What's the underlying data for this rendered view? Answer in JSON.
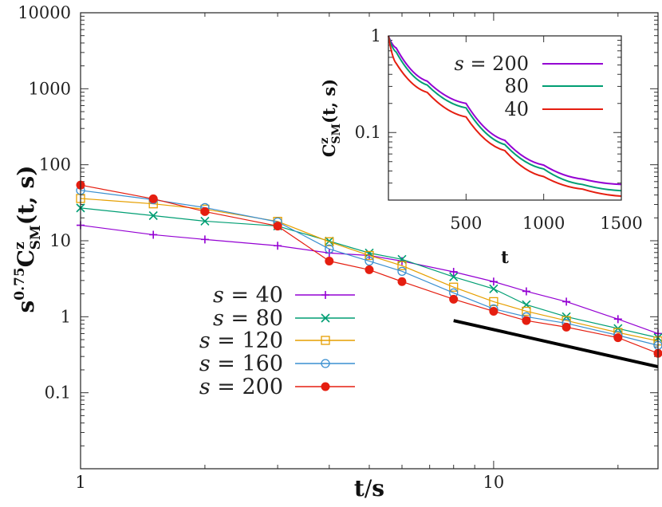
{
  "chart_data": [
    {
      "type": "line",
      "scale": "log-log",
      "xlabel_parts": {
        "t": "t",
        "slash": "/",
        "s": "s"
      },
      "ylabel_parts": {
        "s": "s",
        "s_exp": "0.75",
        "C": "C",
        "C_sup": "z",
        "C_sub": "SM",
        "args": "(t, s)"
      },
      "xlim": [
        1,
        25
      ],
      "ylim": [
        0.01,
        10000
      ],
      "xticks": [
        "1",
        "10"
      ],
      "xtick_values": [
        1,
        10
      ],
      "yticks": [
        "0.1",
        "1",
        "10",
        "100",
        "1000",
        "10000"
      ],
      "ytick_values": [
        0.1,
        1,
        10,
        100,
        1000,
        10000
      ],
      "grid": false,
      "legend_position": "bottom-left",
      "series": [
        {
          "name": "s = 40",
          "s_label": "s",
          "eq": "= 40",
          "color": "#9400d3",
          "marker": "plus",
          "x": [
            1,
            1.5,
            2,
            3,
            4,
            5,
            6,
            8,
            10,
            12,
            15,
            20,
            25
          ],
          "y": [
            16,
            12,
            10.4,
            8.6,
            6.9,
            6.4,
            5.4,
            3.9,
            2.9,
            2.16,
            1.58,
            0.93,
            0.6
          ]
        },
        {
          "name": "s = 80",
          "s_label": "s",
          "eq": "= 80",
          "color": "#009e73",
          "marker": "cross",
          "x": [
            1,
            1.5,
            2,
            3,
            4,
            5,
            6,
            8,
            10,
            12,
            15,
            20,
            25
          ],
          "y": [
            27,
            21.4,
            18.1,
            15.6,
            9.9,
            6.9,
            5.7,
            3.35,
            2.33,
            1.44,
            1.0,
            0.7,
            0.53
          ]
        },
        {
          "name": "s = 120",
          "s_label": "s",
          "eq": "= 120",
          "color": "#e69f00",
          "marker": "open-square",
          "x": [
            1,
            1.5,
            2,
            3,
            4,
            5,
            6,
            8,
            10,
            12,
            15,
            20,
            25
          ],
          "y": [
            36,
            30.6,
            26,
            18,
            9.7,
            6.4,
            4.7,
            2.45,
            1.58,
            1.18,
            0.89,
            0.62,
            0.48
          ]
        },
        {
          "name": "s = 160",
          "s_label": "s",
          "eq": "= 160",
          "color": "#3a8fd0",
          "marker": "open-circle",
          "x": [
            1,
            1.5,
            2,
            3,
            4,
            5,
            6,
            8,
            10,
            12,
            15,
            20,
            25
          ],
          "y": [
            46,
            34.7,
            27.3,
            17.7,
            7.8,
            5.4,
            3.96,
            2.06,
            1.27,
            1.0,
            0.82,
            0.57,
            0.42
          ]
        },
        {
          "name": "s = 200",
          "s_label": "s",
          "eq": "= 200",
          "color": "#e51e10",
          "marker": "filled-circle",
          "x": [
            1,
            1.5,
            2,
            3,
            4,
            5,
            6,
            8,
            10,
            12,
            15,
            20,
            25
          ],
          "y": [
            54,
            35.6,
            24.2,
            15.6,
            5.4,
            4.15,
            2.9,
            1.7,
            1.18,
            0.89,
            0.73,
            0.53,
            0.33
          ]
        }
      ],
      "reference_line": {
        "color": "#000000",
        "x": [
          8,
          25
        ],
        "y": [
          0.89,
          0.22
        ]
      }
    },
    {
      "type": "line",
      "scale": "log-y",
      "xlabel": "t",
      "ylabel_parts": {
        "C": "C",
        "C_sup": "z",
        "C_sub": "SM",
        "args": "(t, s)"
      },
      "xlim": [
        0,
        1500
      ],
      "ylim": [
        0.02,
        1
      ],
      "xticks": [
        "500",
        "1000",
        "1500"
      ],
      "xtick_values": [
        500,
        1000,
        1500
      ],
      "yticks": [
        "1",
        "0.1"
      ],
      "ytick_values": [
        1,
        0.1
      ],
      "grid": false,
      "legend_position": "top-right",
      "series": [
        {
          "name": "s = 200",
          "color": "#9400d3",
          "x": [
            0,
            50,
            250,
            500,
            750,
            1000,
            1250,
            1500
          ],
          "y": [
            1,
            0.75,
            0.34,
            0.2,
            0.083,
            0.046,
            0.033,
            0.029
          ]
        },
        {
          "name": "80",
          "color": "#009e73",
          "x": [
            0,
            50,
            250,
            500,
            750,
            1000,
            1250,
            1500
          ],
          "y": [
            1,
            0.68,
            0.31,
            0.18,
            0.075,
            0.042,
            0.029,
            0.025
          ]
        },
        {
          "name": "40",
          "color": "#e51e10",
          "x": [
            0,
            50,
            250,
            500,
            750,
            1000,
            1250,
            1500
          ],
          "y": [
            1,
            0.52,
            0.26,
            0.145,
            0.065,
            0.035,
            0.026,
            0.022
          ]
        }
      ]
    }
  ]
}
